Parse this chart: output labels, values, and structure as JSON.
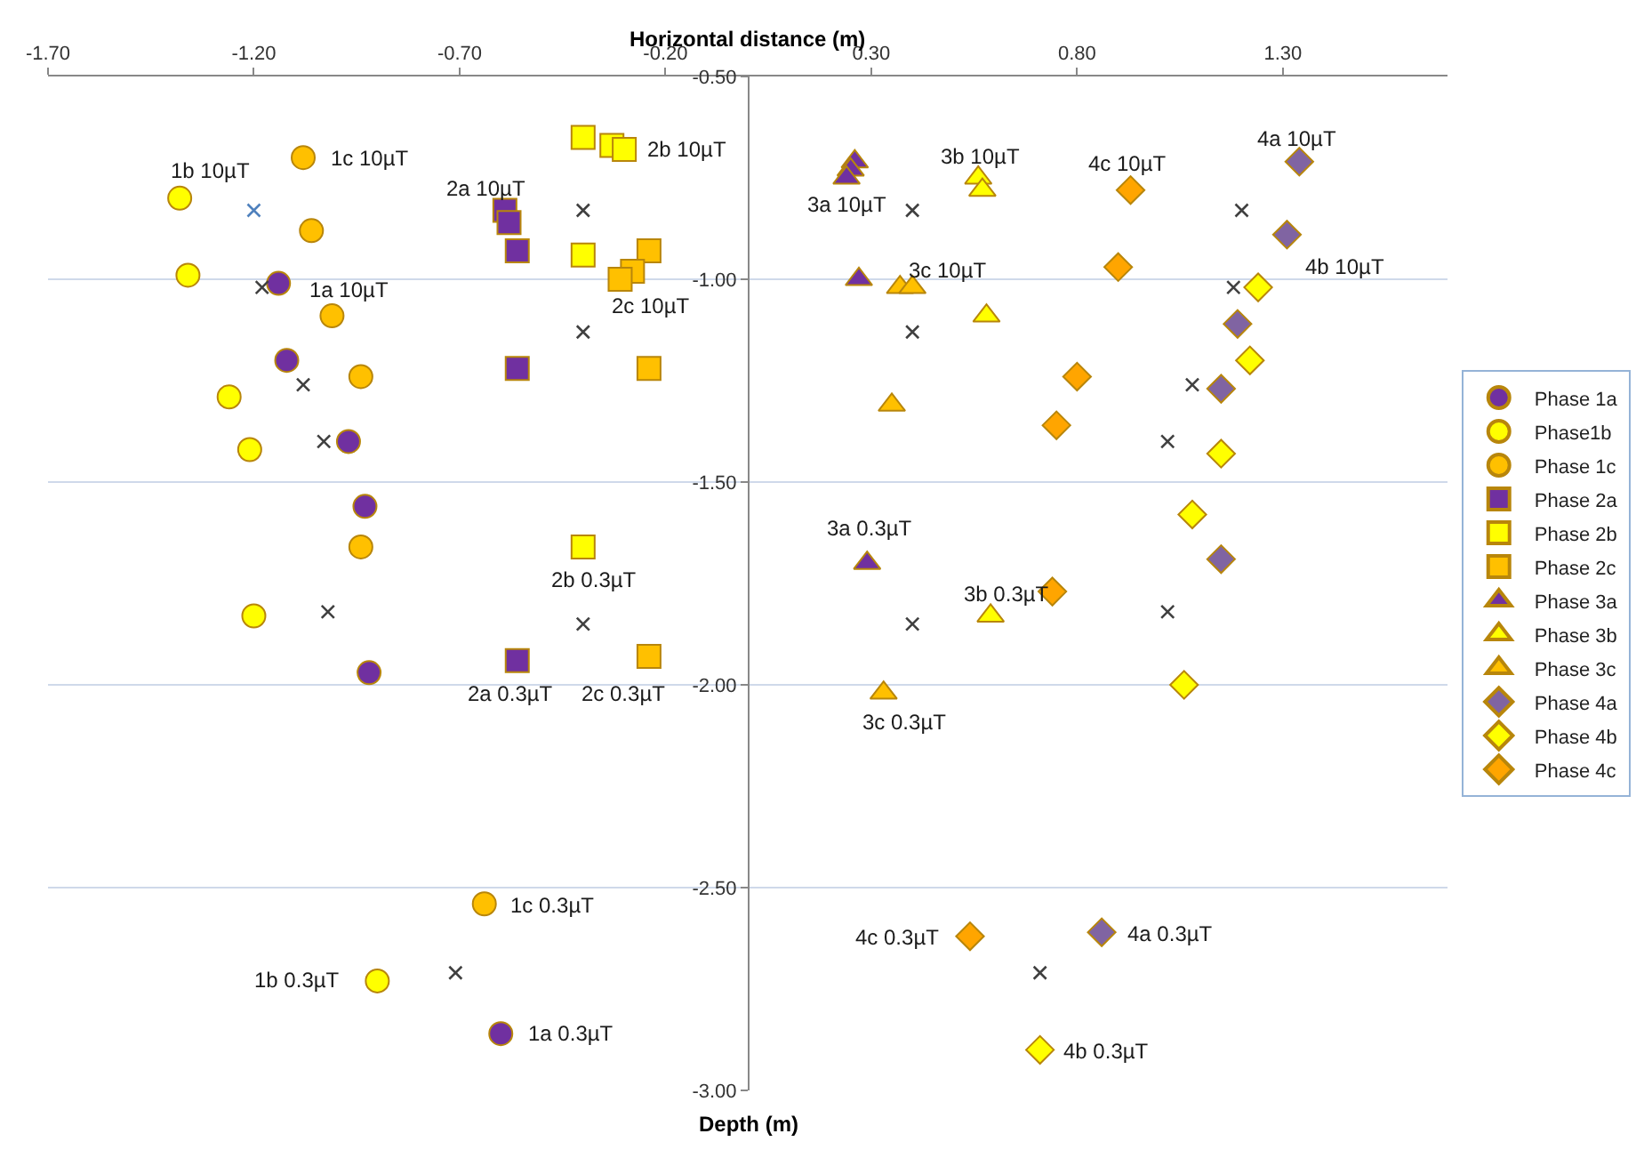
{
  "chart_data": {
    "type": "scatter",
    "xlabel": "Horizontal distance (m)",
    "xlim": [
      -1.7,
      1.7
    ],
    "ylim": [
      -3.0,
      -0.5
    ],
    "xticks": [
      {
        "value": -1.7,
        "label": "-1.70"
      },
      {
        "value": -1.2,
        "label": "-1.20"
      },
      {
        "value": -0.7,
        "label": "-0.70"
      },
      {
        "value": -0.2,
        "label": "-0.20"
      },
      {
        "value": 0.3,
        "label": "0.30"
      },
      {
        "value": 0.8,
        "label": "0.80"
      },
      {
        "value": 1.3,
        "label": "1.30"
      }
    ],
    "yticks": [
      {
        "value": -0.5,
        "label": "-0.50"
      },
      {
        "value": -1.0,
        "label": "-1.00"
      },
      {
        "value": -1.5,
        "label": "-1.50"
      },
      {
        "value": -2.0,
        "label": "-2.00"
      },
      {
        "value": -2.5,
        "label": "-2.50"
      },
      {
        "value": -3.0,
        "label": "-3.00"
      }
    ],
    "grid": "y",
    "legend": "right",
    "series": [
      {
        "name": "Phase 1a",
        "color": "#7030a0",
        "marker": "circle",
        "x": [
          -1.14,
          -1.12,
          -0.97,
          -0.93,
          -0.92,
          -0.6
        ],
        "values": [
          -1.01,
          -1.2,
          -1.4,
          -1.56,
          -1.97,
          -2.86
        ]
      },
      {
        "name": "Phase1b",
        "color": "#ffff00",
        "marker": "circle",
        "x": [
          -1.38,
          -1.36,
          -1.26,
          -1.21,
          -1.2,
          -0.9
        ],
        "values": [
          -0.8,
          -0.99,
          -1.29,
          -1.42,
          -1.83,
          -2.73
        ]
      },
      {
        "name": "Phase 1c",
        "color": "#ffc000",
        "marker": "circle",
        "x": [
          -1.08,
          -1.06,
          -1.01,
          -0.94,
          -0.94,
          -0.64
        ],
        "values": [
          -0.7,
          -0.88,
          -1.09,
          -1.24,
          -1.66,
          -2.54
        ]
      },
      {
        "name": "Phase 2a",
        "color": "#7030a0",
        "marker": "square",
        "x": [
          -0.59,
          -0.58,
          -0.56,
          -0.56,
          -0.56
        ],
        "values": [
          -0.83,
          -0.86,
          -0.93,
          -1.22,
          -1.94
        ]
      },
      {
        "name": "Phase 2b",
        "color": "#ffff00",
        "marker": "square",
        "x": [
          -0.4,
          -0.33,
          -0.3,
          -0.4,
          -0.4
        ],
        "values": [
          -0.65,
          -0.67,
          -0.68,
          -0.94,
          -1.66
        ]
      },
      {
        "name": "Phase 2c",
        "color": "#ffc000",
        "marker": "square",
        "x": [
          -0.24,
          -0.28,
          -0.31,
          -0.24,
          -0.24
        ],
        "values": [
          -0.93,
          -0.98,
          -1.0,
          -1.22,
          -1.93
        ]
      },
      {
        "name": "Phase 3a",
        "color": "#7030a0",
        "marker": "triangle",
        "x": [
          0.26,
          0.25,
          0.24,
          0.27,
          0.29
        ],
        "values": [
          -0.71,
          -0.73,
          -0.75,
          -1.0,
          -1.7
        ]
      },
      {
        "name": "Phase 3b",
        "color": "#ffff00",
        "marker": "triangle",
        "x": [
          0.56,
          0.57,
          0.58,
          0.59
        ],
        "values": [
          -0.75,
          -0.78,
          -1.09,
          -1.83
        ]
      },
      {
        "name": "Phase 3c",
        "color": "#ffc000",
        "marker": "triangle",
        "x": [
          0.37,
          0.4,
          0.35,
          0.33
        ],
        "values": [
          -1.02,
          -1.02,
          -1.31,
          -2.02
        ]
      },
      {
        "name": "Phase 4a",
        "color": "#8064a2",
        "marker": "diamond",
        "x": [
          1.34,
          1.31,
          1.19,
          1.15,
          1.15,
          0.86
        ],
        "values": [
          -0.71,
          -0.89,
          -1.11,
          -1.27,
          -1.69,
          -2.61
        ]
      },
      {
        "name": "Phase 4b",
        "color": "#ffff00",
        "marker": "diamond",
        "x": [
          1.24,
          1.22,
          1.15,
          1.08,
          1.06,
          0.71
        ],
        "values": [
          -1.02,
          -1.2,
          -1.43,
          -1.58,
          -2.0,
          -2.9
        ]
      },
      {
        "name": "Phase 4c",
        "color": "#ffa500",
        "marker": "diamond",
        "x": [
          0.93,
          0.9,
          0.8,
          0.75,
          0.74,
          0.54
        ],
        "values": [
          -0.78,
          -0.97,
          -1.24,
          -1.36,
          -1.77,
          -2.62
        ]
      },
      {
        "color": "#404040",
        "marker": "cross",
        "colors": [
          "#4f81bd",
          "#404040",
          "#404040",
          "#404040",
          "#404040",
          "#404040",
          "#404040",
          "#404040",
          "#404040",
          "#404040",
          "#404040",
          "#404040",
          "#404040",
          "#404040",
          "#404040",
          "#404040",
          "#404040",
          "#404040"
        ],
        "x": [
          -1.2,
          -0.4,
          -1.18,
          -0.4,
          -1.08,
          -1.03,
          -1.02,
          -0.4,
          -0.71,
          0.4,
          0.4,
          1.2,
          1.18,
          1.08,
          1.02,
          0.4,
          1.02,
          0.71
        ],
        "values": [
          -0.83,
          -0.83,
          -1.02,
          -1.13,
          -1.26,
          -1.4,
          -1.82,
          -1.85,
          -2.71,
          -0.83,
          -1.13,
          -0.83,
          -1.02,
          -1.26,
          -1.4,
          -1.85,
          -1.82,
          -2.71
        ]
      }
    ],
    "annotations": [
      {
        "text": "1b 10µT",
        "x": -1.38,
        "y": -0.8
      },
      {
        "text": "1c 10µT",
        "x": -1.08,
        "y": -0.7
      },
      {
        "text": "2a 10µT",
        "x": -0.59,
        "y": -0.83
      },
      {
        "text": "2b 10µT",
        "x": -0.3,
        "y": -0.68
      },
      {
        "text": "1a 10µT",
        "x": -1.14,
        "y": -1.01
      },
      {
        "text": "2c 10µT",
        "x": -0.28,
        "y": -0.98
      },
      {
        "text": "3a 10µT",
        "x": 0.24,
        "y": -0.75
      },
      {
        "text": "3b 10µT",
        "x": 0.56,
        "y": -0.75
      },
      {
        "text": "4c 10µT",
        "x": 0.93,
        "y": -0.78
      },
      {
        "text": "4a 10µT",
        "x": 1.34,
        "y": -0.71
      },
      {
        "text": "3c 10µT",
        "x": 0.4,
        "y": -1.02
      },
      {
        "text": "4b 10µT",
        "x": 1.24,
        "y": -1.02
      },
      {
        "text": "2b 0.3µT",
        "x": -0.4,
        "y": -1.66
      },
      {
        "text": "3a 0.3µT",
        "x": 0.29,
        "y": -1.7
      },
      {
        "text": "3b 0.3µT",
        "x": 0.59,
        "y": -1.83
      },
      {
        "text": "2a 0.3µT",
        "x": -0.56,
        "y": -1.94
      },
      {
        "text": "2c 0.3µT",
        "x": -0.24,
        "y": -1.93
      },
      {
        "text": "3c 0.3µT",
        "x": 0.33,
        "y": -2.02
      },
      {
        "text": "1c 0.3µT",
        "x": -0.64,
        "y": -2.54
      },
      {
        "text": "4c 0.3µT",
        "x": 0.54,
        "y": -2.62
      },
      {
        "text": "4a 0.3µT",
        "x": 0.86,
        "y": -2.61
      },
      {
        "text": "1b 0.3µT",
        "x": -0.9,
        "y": -2.73
      },
      {
        "text": "1a 0.3µT",
        "x": -0.6,
        "y": -2.86
      },
      {
        "text": "4b 0.3µT",
        "x": 0.71,
        "y": -2.9
      },
      "Depth (m)"
    ]
  }
}
